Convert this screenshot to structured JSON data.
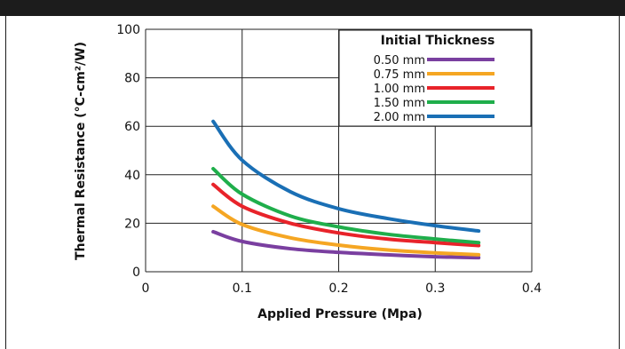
{
  "chart_data": {
    "type": "line",
    "xlabel": "Applied Pressure (Mpa)",
    "ylabel": "Thermal Resistance (°C-cm²/W)",
    "xlim": [
      0,
      0.4
    ],
    "ylim": [
      0,
      100
    ],
    "x_ticks": [
      "0",
      "0.1",
      "0.2",
      "0.3",
      "0.4"
    ],
    "y_ticks": [
      "0",
      "20",
      "40",
      "60",
      "80",
      "100"
    ],
    "grid": true,
    "legend": {
      "title": "Initial Thickness",
      "placement": "top-right"
    },
    "series": [
      {
        "name": "0.50 mm",
        "color": "#7a3fa0",
        "x": [
          0.07,
          0.1,
          0.15,
          0.2,
          0.25,
          0.3,
          0.345
        ],
        "y": [
          16.5,
          12.5,
          9.5,
          8,
          7,
          6.2,
          5.8
        ]
      },
      {
        "name": "0.75 mm",
        "color": "#f5a623",
        "x": [
          0.07,
          0.1,
          0.15,
          0.2,
          0.25,
          0.3,
          0.345
        ],
        "y": [
          27,
          19.5,
          14,
          11,
          9,
          7.8,
          7
        ]
      },
      {
        "name": "1.00 mm",
        "color": "#e8232a",
        "x": [
          0.07,
          0.1,
          0.15,
          0.2,
          0.25,
          0.3,
          0.345
        ],
        "y": [
          36,
          27,
          20,
          16,
          13.5,
          12,
          10.8
        ]
      },
      {
        "name": "1.50 mm",
        "color": "#1fae4b",
        "x": [
          0.07,
          0.1,
          0.15,
          0.2,
          0.25,
          0.3,
          0.345
        ],
        "y": [
          42.5,
          32,
          23,
          18.5,
          15.5,
          13.5,
          12
        ]
      },
      {
        "name": "2.00 mm",
        "color": "#1a6fb5",
        "x": [
          0.07,
          0.1,
          0.15,
          0.2,
          0.25,
          0.3,
          0.345
        ],
        "y": [
          62,
          46,
          33,
          26,
          22,
          19,
          16.8
        ]
      }
    ]
  }
}
